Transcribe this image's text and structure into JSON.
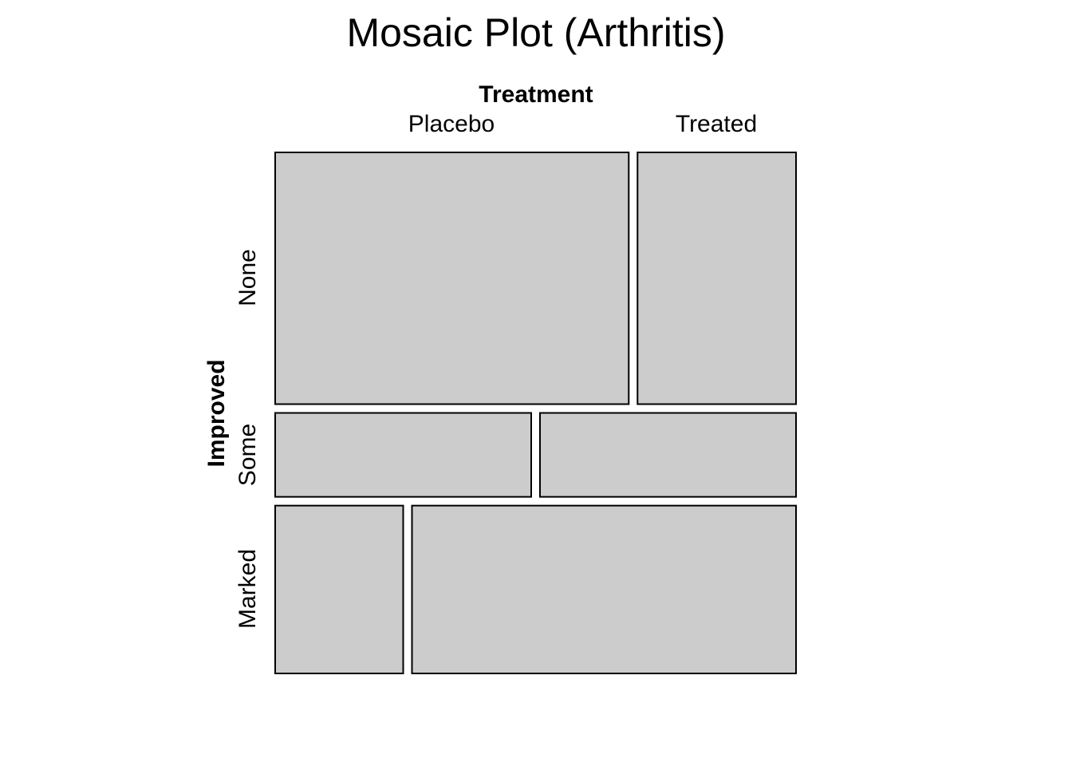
{
  "chart_data": {
    "type": "mosaic",
    "title": "Mosaic Plot (Arthritis)",
    "column_variable": "Treatment",
    "row_variable": "Improved",
    "columns": [
      "Placebo",
      "Treated"
    ],
    "rows": [
      "None",
      "Some",
      "Marked"
    ],
    "counts": {
      "None": [
        29,
        13
      ],
      "Some": [
        7,
        7
      ],
      "Marked": [
        7,
        21
      ]
    },
    "fill_color": "#cccccc",
    "border_color": "#000000"
  }
}
